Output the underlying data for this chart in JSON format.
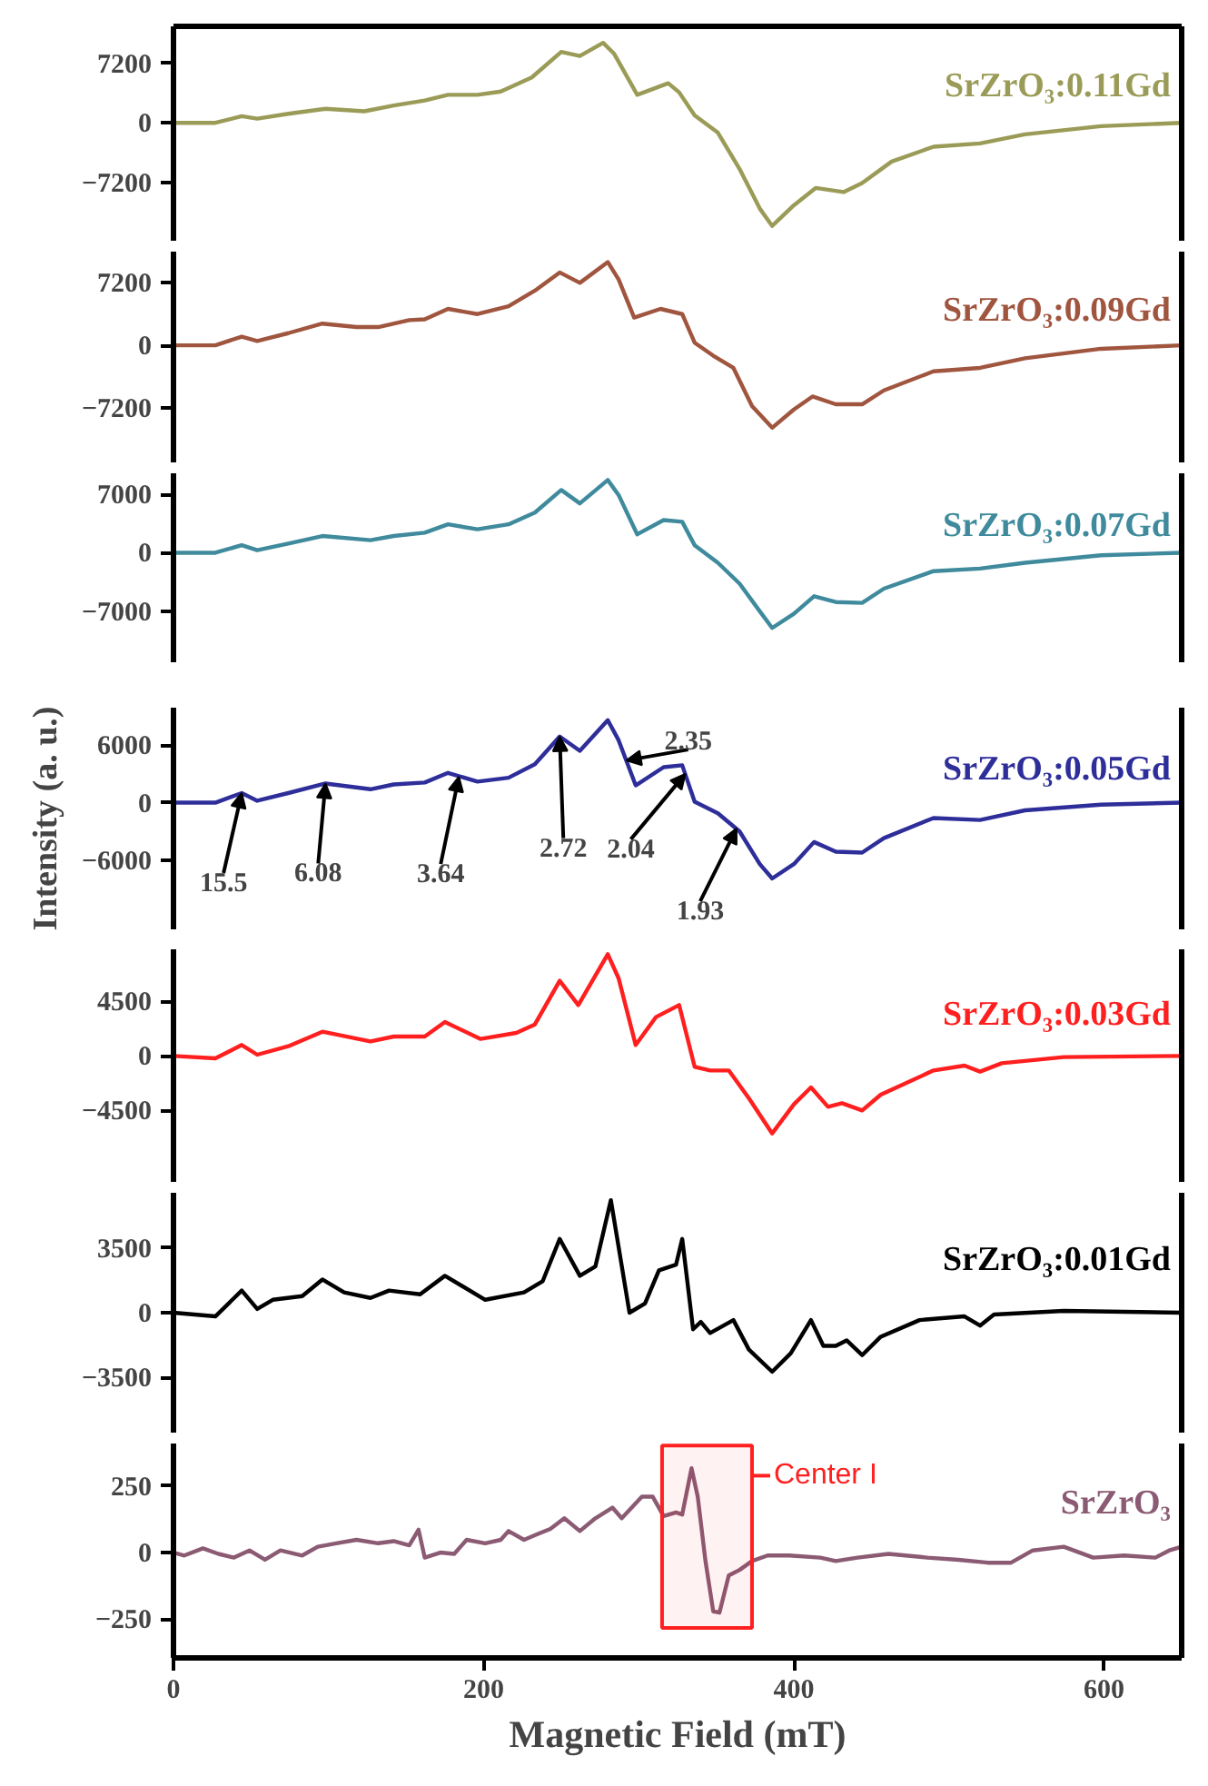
{
  "chart_data": [
    {
      "type": "line",
      "xlim": [
        0,
        650
      ],
      "ylim": [
        -14300,
        11700
      ],
      "yticks": [
        -7200,
        0,
        7200
      ],
      "tick_labels": "y",
      "x": [
        0,
        27,
        44,
        54,
        74,
        98,
        123,
        142,
        162,
        177,
        196,
        211,
        231,
        250,
        262,
        277,
        284,
        299,
        319,
        326,
        336,
        351,
        365,
        378,
        386,
        400,
        414,
        432,
        444,
        463,
        490,
        520,
        549,
        598,
        650
      ],
      "series": [
        {
          "name": "SrZrO₃:0.11Gd",
          "color": "#9b9b58",
          "values": [
            0,
            0,
            800,
            500,
            1100,
            1700,
            1400,
            2100,
            2700,
            3400,
            3400,
            3800,
            5500,
            8600,
            8100,
            9700,
            8400,
            3400,
            4800,
            3700,
            900,
            -1200,
            -5600,
            -10400,
            -12500,
            -10000,
            -7900,
            -8400,
            -7300,
            -4700,
            -2900,
            -2500,
            -1400,
            -400,
            0
          ]
        }
      ]
    },
    {
      "type": "line",
      "xlim": [
        0,
        650
      ],
      "ylim": [
        -13500,
        10800
      ],
      "yticks": [
        -7200,
        0,
        7200
      ],
      "tick_labels": "y",
      "x": [
        0,
        27,
        44,
        54,
        74,
        96,
        118,
        132,
        152,
        162,
        177,
        196,
        216,
        233,
        249,
        262,
        280,
        287,
        297,
        314,
        328,
        336,
        348,
        361,
        373,
        386,
        400,
        412,
        427,
        444,
        458,
        490,
        520,
        549,
        598,
        650
      ],
      "series": [
        {
          "name": "SrZrO₃:0.09Gd",
          "color": "#a0553f",
          "values": [
            0,
            0,
            1000,
            500,
            1400,
            2500,
            2100,
            2100,
            2900,
            3000,
            4200,
            3600,
            4500,
            6300,
            8400,
            7200,
            9600,
            7600,
            3200,
            4200,
            3600,
            300,
            -1200,
            -2600,
            -7000,
            -9500,
            -7400,
            -5900,
            -6800,
            -6800,
            -5200,
            -3000,
            -2600,
            -1500,
            -400,
            0
          ]
        }
      ]
    },
    {
      "type": "line",
      "xlim": [
        0,
        650
      ],
      "ylim": [
        -13100,
        9500
      ],
      "yticks": [
        -7000,
        0,
        7000
      ],
      "tick_labels": "y",
      "x": [
        0,
        27,
        44,
        54,
        74,
        96,
        127,
        142,
        162,
        177,
        196,
        216,
        233,
        250,
        262,
        280,
        287,
        299,
        316,
        328,
        336,
        351,
        365,
        378,
        386,
        400,
        413,
        427,
        444,
        458,
        490,
        520,
        549,
        598,
        650
      ],
      "series": [
        {
          "name": "SrZrO₃:0.07Gd",
          "color": "#3f8a9c",
          "values": [
            0,
            0,
            900,
            300,
            1100,
            2000,
            1500,
            2000,
            2400,
            3400,
            2800,
            3400,
            4800,
            7500,
            5900,
            8700,
            6900,
            2200,
            3900,
            3700,
            900,
            -1200,
            -3700,
            -7000,
            -9000,
            -7300,
            -5200,
            -5900,
            -6000,
            -4300,
            -2200,
            -1900,
            -1200,
            -300,
            0
          ]
        }
      ]
    },
    {
      "type": "line",
      "xlim": [
        0,
        650
      ],
      "ylim": [
        -13200,
        9900
      ],
      "yticks": [
        -6000,
        0,
        6000
      ],
      "tick_labels": "y",
      "ylabel": "Intensity (a. u.)",
      "x": [
        0,
        27,
        44,
        54,
        74,
        98,
        127,
        142,
        162,
        177,
        196,
        216,
        233,
        249,
        262,
        280,
        287,
        298,
        316,
        328,
        336,
        351,
        365,
        378,
        386,
        400,
        413,
        427,
        444,
        458,
        490,
        520,
        549,
        598,
        650
      ],
      "series": [
        {
          "name": "SrZrO₃:0.05Gd",
          "color": "#2e2e9a",
          "values": [
            0,
            0,
            1000,
            200,
            1000,
            2000,
            1400,
            1900,
            2100,
            3100,
            2200,
            2600,
            4000,
            6900,
            5400,
            8600,
            6500,
            1800,
            3700,
            3900,
            100,
            -1100,
            -3000,
            -6400,
            -7900,
            -6400,
            -4100,
            -5100,
            -5200,
            -3700,
            -1600,
            -1800,
            -800,
            -200,
            0
          ]
        }
      ],
      "annotations": [
        {
          "text": "15.5",
          "x": 44,
          "y": 1000
        },
        {
          "text": "6.08",
          "x": 98,
          "y": 2000
        },
        {
          "text": "3.64",
          "x": 184,
          "y": 2700
        },
        {
          "text": "2.72",
          "x": 249,
          "y": 6900
        },
        {
          "text": "2.35",
          "x": 292,
          "y": 4400
        },
        {
          "text": "2.04",
          "x": 330,
          "y": 3000
        },
        {
          "text": "1.93",
          "x": 363,
          "y": -2700
        }
      ]
    },
    {
      "type": "line",
      "xlim": [
        0,
        650
      ],
      "ylim": [
        -10400,
        8800
      ],
      "yticks": [
        -4500,
        0,
        4500
      ],
      "tick_labels": "y",
      "x": [
        0,
        27,
        44,
        54,
        74,
        96,
        127,
        142,
        162,
        175,
        198,
        221,
        233,
        249,
        261,
        280,
        287,
        298,
        311,
        326,
        336,
        346,
        358,
        371,
        386,
        400,
        411,
        422,
        431,
        444,
        456,
        490,
        510,
        520,
        534,
        574,
        650
      ],
      "series": [
        {
          "name": "SrZrO₃:0.03Gd",
          "color": "#ff1f1f",
          "values": [
            0,
            -200,
            900,
            100,
            800,
            2000,
            1200,
            1600,
            1600,
            2800,
            1400,
            1900,
            2600,
            6200,
            4200,
            8400,
            6400,
            900,
            3200,
            4200,
            -900,
            -1200,
            -1200,
            -3500,
            -6400,
            -4000,
            -2600,
            -4200,
            -3900,
            -4500,
            -3200,
            -1200,
            -800,
            -1300,
            -600,
            -100,
            0
          ]
        }
      ]
    },
    {
      "type": "line",
      "xlim": [
        0,
        650
      ],
      "ylim": [
        -6500,
        6500
      ],
      "yticks": [
        -3500,
        0,
        3500
      ],
      "tick_labels": "y",
      "x": [
        0,
        27,
        44,
        54,
        64,
        83,
        96,
        110,
        127,
        139,
        159,
        175,
        201,
        226,
        238,
        249,
        262,
        272,
        282,
        294,
        304,
        313,
        324,
        328,
        335,
        340,
        346,
        361,
        371,
        386,
        398,
        411,
        419,
        427,
        434,
        444,
        456,
        481,
        510,
        520,
        529,
        574,
        650
      ],
      "series": [
        {
          "name": "SrZrO₃:0.01Gd",
          "color": "#000000",
          "values": [
            0,
            -200,
            1200,
            200,
            700,
            900,
            1800,
            1100,
            800,
            1200,
            1000,
            2000,
            700,
            1100,
            1700,
            4000,
            2000,
            2500,
            6100,
            0,
            500,
            2300,
            2600,
            4000,
            -900,
            -500,
            -1100,
            -400,
            -2000,
            -3200,
            -2200,
            -400,
            -1800,
            -1800,
            -1500,
            -2300,
            -1300,
            -400,
            -200,
            -700,
            -100,
            100,
            0
          ]
        }
      ]
    },
    {
      "type": "line",
      "xlim": [
        0,
        650
      ],
      "ylim": [
        -396,
        410
      ],
      "yticks": [
        -250,
        0,
        250
      ],
      "xticks": [
        0,
        200,
        400,
        600
      ],
      "xlabel": "Magnetic Field (mT)",
      "x": [
        0,
        7,
        19,
        29,
        39,
        49,
        59,
        69,
        83,
        93,
        105,
        118,
        132,
        142,
        152,
        158,
        162,
        172,
        181,
        189,
        201,
        211,
        216,
        226,
        235,
        243,
        252,
        262,
        272,
        283,
        289,
        302,
        309,
        316,
        324,
        328,
        334,
        338,
        343,
        348,
        352,
        358,
        365,
        373,
        383,
        397,
        417,
        427,
        441,
        461,
        486,
        506,
        525,
        540,
        554,
        574,
        593,
        613,
        633,
        642,
        650
      ],
      "series": [
        {
          "name": "SrZrO₃",
          "color": "#8b5a73",
          "values": [
            0,
            -11,
            16,
            -5,
            -19,
            8,
            -27,
            8,
            -11,
            22,
            35,
            48,
            35,
            43,
            27,
            86,
            -19,
            0,
            -5,
            48,
            35,
            48,
            81,
            48,
            70,
            89,
            129,
            81,
            129,
            169,
            129,
            210,
            210,
            137,
            151,
            143,
            317,
            210,
            -32,
            -221,
            -226,
            -86,
            -65,
            -32,
            -11,
            -11,
            -19,
            -32,
            -19,
            -5,
            -19,
            -27,
            -38,
            -38,
            8,
            22,
            -19,
            -11,
            -19,
            8,
            22
          ]
        }
      ],
      "bands": [
        {
          "axis": "x",
          "from": 315,
          "to": 373,
          "label": "Center I",
          "color": "#ff2020"
        }
      ]
    }
  ]
}
